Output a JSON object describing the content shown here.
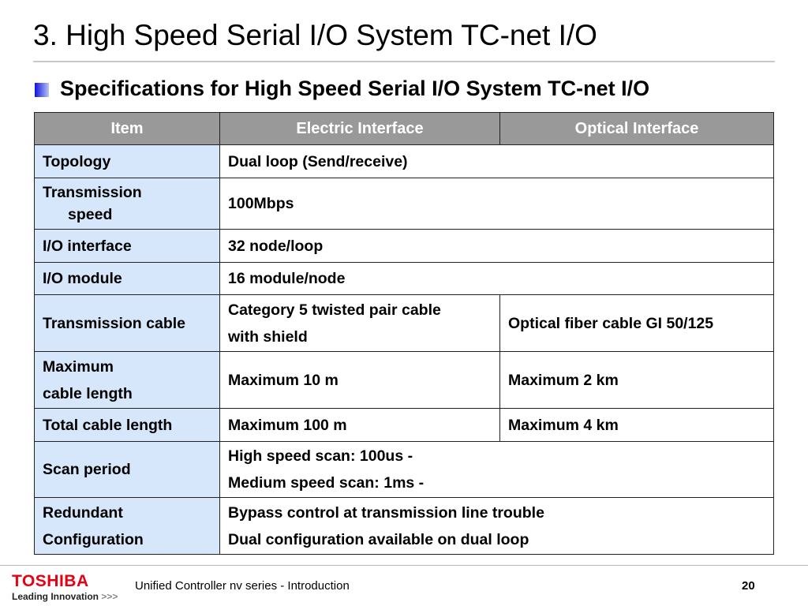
{
  "slide": {
    "title": "3. High Speed Serial I/O System TC-net I/O",
    "subtitle": "Specifications for High Speed Serial I/O System TC-net I/O",
    "accent_color": "#1010e0"
  },
  "table": {
    "headers": [
      "Item",
      "Electric Interface",
      "Optical Interface"
    ],
    "rows": [
      {
        "item": [
          "Topology"
        ],
        "electric": [
          "Dual loop (Send/receive)"
        ],
        "span": true
      },
      {
        "item": [
          "Transmission",
          "speed"
        ],
        "electric": [
          "100Mbps"
        ],
        "span": true
      },
      {
        "item": [
          "I/O interface"
        ],
        "electric": [
          "32 node/loop"
        ],
        "span": true
      },
      {
        "item": [
          "I/O module"
        ],
        "electric": [
          "16 module/node"
        ],
        "span": true
      },
      {
        "item": [
          "Transmission cable"
        ],
        "electric": [
          "Category 5 twisted pair cable",
          "with shield"
        ],
        "optical": [
          "Optical fiber cable GI 50/125"
        ]
      },
      {
        "item": [
          "Maximum",
          "cable length"
        ],
        "electric": [
          "Maximum 10 m"
        ],
        "optical": [
          "Maximum 2 km"
        ]
      },
      {
        "item": [
          "Total cable length"
        ],
        "electric": [
          "Maximum 100 m"
        ],
        "optical": [
          "Maximum 4 km"
        ]
      },
      {
        "item": [
          "Scan period"
        ],
        "electric": [
          "High speed scan: 100us -",
          "Medium speed scan: 1ms -"
        ],
        "span": true
      },
      {
        "item": [
          "Redundant",
          "Configuration"
        ],
        "electric": [
          "Bypass control at transmission line trouble",
          "Dual configuration available on dual loop"
        ],
        "span": true
      }
    ]
  },
  "footer": {
    "logo_brand": "TOSHIBA",
    "logo_tagline": "Leading Innovation",
    "logo_arrows": ">>>",
    "text": "Unified Controller nv series - Introduction",
    "page": "20"
  }
}
